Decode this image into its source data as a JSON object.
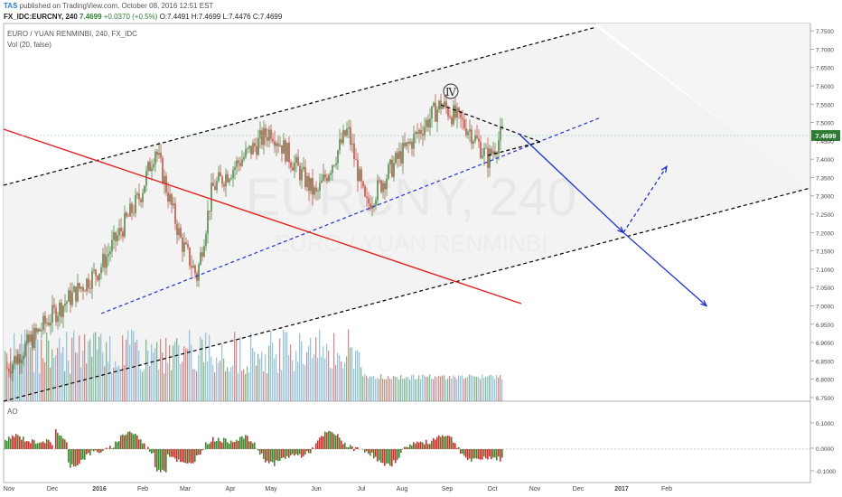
{
  "header": {
    "user": "TAS",
    "published": "published on TradingView.com, October 08, 2016 12:51 EST",
    "symbol_line": {
      "symbol": "FX_IDC:EURCNY, 240",
      "last": "7.4699",
      "change": "+0.0370 (+0.5%)",
      "open": "O:7.4491",
      "high": "H:7.4699",
      "low": "L:7.4476",
      "close": "C:7.4699"
    }
  },
  "chart_data": {
    "type": "line",
    "title": "EURO / YUAN RENMINBI, 240, FX_IDC",
    "subtitle": "Vol (20, false)",
    "watermark_symbol": "EURCNY, 240",
    "watermark_name": "EURO / YUAN RENMINBI",
    "wave_label": "Ⅳ",
    "last_price_label": "7.4699",
    "x_ticks": [
      "Nov",
      "Dec",
      "2016",
      "Feb",
      "Mar",
      "Apr",
      "May",
      "Jun",
      "Jul",
      "Aug",
      "Sep",
      "Oct",
      "Nov",
      "Dec",
      "2017",
      "Feb"
    ],
    "y_ticks": [
      "7.7500",
      "7.7000",
      "7.6500",
      "7.6000",
      "7.5500",
      "7.5000",
      "7.4500",
      "7.4000",
      "7.3500",
      "7.3000",
      "7.2500",
      "7.2000",
      "7.1500",
      "7.1000",
      "7.0500",
      "7.0000",
      "6.9500",
      "6.9000",
      "6.8500",
      "6.8000",
      "6.7500"
    ],
    "ylim": [
      6.74,
      7.77
    ],
    "price_series": {
      "name": "EURCNY",
      "x": [
        "2015-11",
        "2015-12",
        "2016-01",
        "2016-02",
        "2016-02",
        "2016-03",
        "2016-03",
        "2016-04",
        "2016-05",
        "2016-05",
        "2016-06",
        "2016-07",
        "2016-08",
        "2016-08",
        "2016-09",
        "2016-09",
        "2016-10"
      ],
      "values": [
        6.83,
        6.98,
        7.1,
        7.3,
        7.43,
        7.18,
        7.08,
        7.32,
        7.48,
        7.3,
        7.48,
        7.27,
        7.4,
        7.55,
        7.48,
        7.4,
        7.47
      ]
    },
    "projection": {
      "x": [
        "2016-10",
        "2016-11",
        "2016-12",
        "2017-01",
        "2017-01"
      ],
      "values": [
        7.47,
        7.2,
        7.38,
        7.2,
        7.0
      ]
    },
    "ao_panel": {
      "label": "AO",
      "y_ticks": [
        "0.1000",
        "0.0000",
        "-0.1000"
      ]
    }
  }
}
